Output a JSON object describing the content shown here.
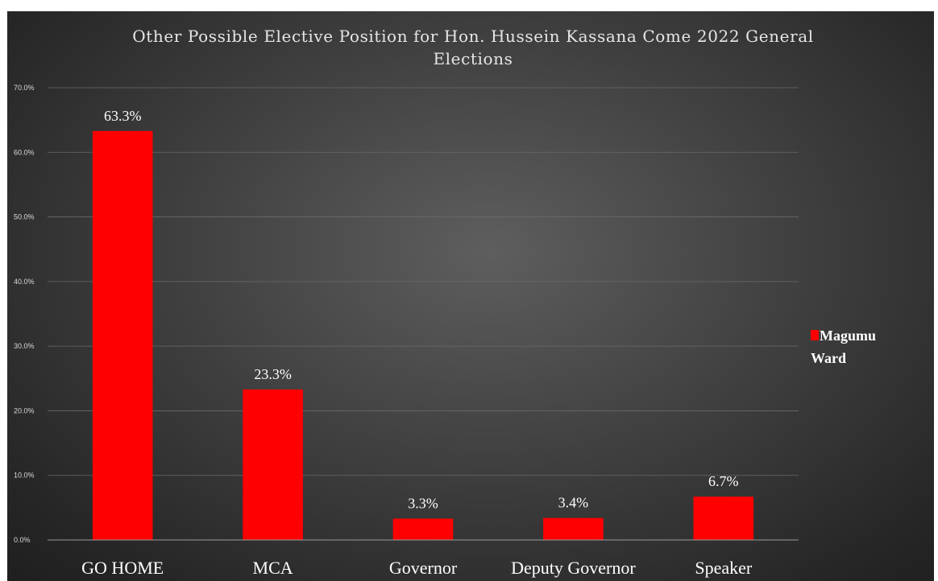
{
  "chart_data": {
    "type": "bar",
    "title_lines": [
      "Other Possible Elective Position for Hon. Hussein Kassana Come 2022 General",
      "Elections"
    ],
    "categories": [
      "GO HOME",
      "MCA",
      "Governor",
      "Deputy Governor",
      "Speaker"
    ],
    "series": [
      {
        "name": "Magumu Ward",
        "name_lines": [
          "Magumu",
          "Ward"
        ],
        "values": [
          63.3,
          23.3,
          3.3,
          3.4,
          6.7
        ],
        "labels": [
          "63.3%",
          "23.3%",
          "3.3%",
          "3.4%",
          "6.7%"
        ],
        "color": "#ff0000"
      }
    ],
    "ylim": [
      0,
      70
    ],
    "yticks": [
      0,
      10,
      20,
      30,
      40,
      50,
      60,
      70
    ],
    "ytick_labels": [
      "0.0%",
      "10.0%",
      "20.0%",
      "30.0%",
      "40.0%",
      "50.0%",
      "60.0%",
      "70.0%"
    ],
    "grid": true,
    "legend_position": "right",
    "xlabel": "",
    "ylabel": ""
  }
}
